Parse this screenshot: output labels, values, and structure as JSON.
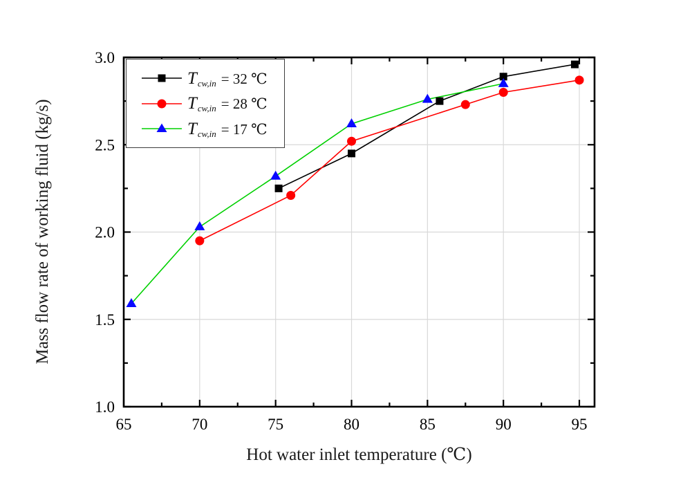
{
  "chart_data": {
    "type": "line",
    "title": "",
    "xlabel": "Hot water inlet temperature (℃)",
    "ylabel": "Mass flow rate of working fluid (kg/s)",
    "xlim": [
      65,
      96
    ],
    "ylim": [
      1.0,
      3.0
    ],
    "x_major_ticks": [
      65,
      70,
      75,
      80,
      85,
      90,
      95
    ],
    "x_tick_labels": [
      "65",
      "70",
      "75",
      "80",
      "85",
      "90",
      "95"
    ],
    "x_minor_ticks": [
      67.5,
      72.5,
      77.5,
      82.5,
      87.5,
      92.5
    ],
    "y_major_ticks": [
      1.0,
      1.5,
      2.0,
      2.5,
      3.0
    ],
    "y_tick_labels": [
      "1.0",
      "1.5",
      "2.0",
      "2.5",
      "3.0"
    ],
    "y_minor_ticks": [
      1.25,
      1.75,
      2.25,
      2.75
    ],
    "x_gridlines": [
      70,
      75,
      80,
      85,
      90,
      95
    ],
    "y_gridlines": [
      1.5,
      2.0,
      2.5
    ],
    "grid": true,
    "legend_position": "top-left",
    "colors": {
      "axis": "#000000",
      "grid": "#d9d9d9",
      "legend_border": "#3d3d3d",
      "background": "#ffffff"
    },
    "series": [
      {
        "id": "Tcwin-32C",
        "name": "T cw,in = 32 ℃",
        "legend_var": "T",
        "legend_sub": "cw,in",
        "legend_rest": "= 32 ℃",
        "line_color": "#000000",
        "marker": "square",
        "marker_color": "#000000",
        "points": [
          [
            75.2,
            2.25
          ],
          [
            80,
            2.45
          ],
          [
            85.8,
            2.75
          ],
          [
            90,
            2.89
          ],
          [
            94.7,
            2.96
          ]
        ]
      },
      {
        "id": "Tcwin-28C",
        "name": "T cw,in = 28 ℃",
        "legend_var": "T",
        "legend_sub": "cw,in",
        "legend_rest": "= 28 ℃",
        "line_color": "#ff0000",
        "marker": "circle",
        "marker_color": "#ff0000",
        "points": [
          [
            70,
            1.95
          ],
          [
            76,
            2.21
          ],
          [
            80,
            2.52
          ],
          [
            87.5,
            2.73
          ],
          [
            90,
            2.8
          ],
          [
            95,
            2.87
          ]
        ]
      },
      {
        "id": "Tcwin-17C",
        "name": "T cw,in = 17 ℃",
        "legend_var": "T",
        "legend_sub": "cw,in",
        "legend_rest": "= 17 ℃",
        "line_color": "#00d000",
        "marker": "triangle",
        "marker_color": "#0a0aff",
        "points": [
          [
            65.5,
            1.59
          ],
          [
            70,
            2.03
          ],
          [
            75,
            2.32
          ],
          [
            80,
            2.62
          ],
          [
            85,
            2.76
          ],
          [
            90,
            2.85
          ]
        ]
      }
    ]
  }
}
